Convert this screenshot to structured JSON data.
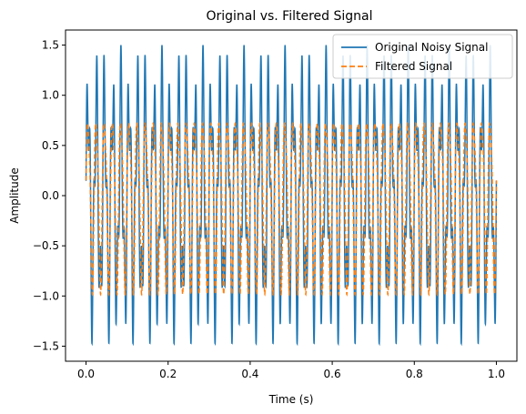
{
  "chart_data": {
    "type": "line",
    "title": "Original vs. Filtered Signal",
    "xlabel": "Time (s)",
    "ylabel": "Amplitude",
    "xlim": [
      -0.05,
      1.05
    ],
    "ylim": [
      -1.65,
      1.65
    ],
    "xticks": [
      0.0,
      0.2,
      0.4,
      0.6,
      0.8,
      1.0
    ],
    "xtick_labels": [
      "0.0",
      "0.2",
      "0.4",
      "0.6",
      "0.8",
      "1.0"
    ],
    "yticks": [
      -1.5,
      -1.0,
      -0.5,
      0.0,
      0.5,
      1.0,
      1.5
    ],
    "ytick_labels": [
      "−1.5",
      "−1.0",
      "−0.5",
      "0.0",
      "0.5",
      "1.0",
      "1.5"
    ],
    "legend_position": "top-right",
    "grid": false,
    "series": [
      {
        "name": "Original Noisy Signal",
        "color": "#1f77b4",
        "style": "solid",
        "description_values": {
          "x_range": [
            0.0,
            1.0
          ],
          "primary_frequency_hz": 50,
          "amplitude_range": [
            -1.5,
            1.5
          ]
        }
      },
      {
        "name": "Filtered Signal",
        "color": "#ff7f0e",
        "style": "dashed",
        "description_values": {
          "x_range": [
            0.0,
            1.0
          ],
          "primary_frequency_hz": 50,
          "amplitude_range": [
            -1.0,
            1.0
          ]
        }
      }
    ]
  }
}
